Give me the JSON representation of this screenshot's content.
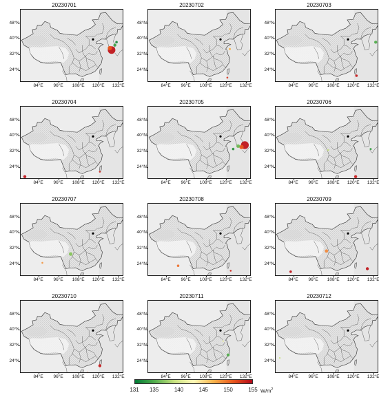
{
  "lat_labels": [
    "48°N",
    "40°N",
    "32°N",
    "24°N"
  ],
  "lon_labels": [
    "84°E",
    "96°E",
    "108°E",
    "120°E",
    "132°E"
  ],
  "map_extent": {
    "lon": [
      73,
      135
    ],
    "lat": [
      18,
      55
    ]
  },
  "panels": [
    {
      "date": "20230701",
      "hotspots": [
        {
          "lon": 127.5,
          "lat": 34.5,
          "r": 2.5,
          "value": 155,
          "color": "#c0161b"
        },
        {
          "lon": 126.5,
          "lat": 35.5,
          "r": 1.4,
          "value": 150,
          "color": "#e8591e"
        },
        {
          "lon": 129.5,
          "lat": 37.0,
          "r": 1.0,
          "value": 135,
          "color": "#3fa24a"
        },
        {
          "lon": 130.5,
          "lat": 38.5,
          "r": 0.8,
          "value": 133,
          "color": "#1e8a3c"
        }
      ]
    },
    {
      "date": "20230702",
      "hotspots": [
        {
          "lon": 122.0,
          "lat": 35.0,
          "r": 0.7,
          "value": 145,
          "color": "#f6b44d"
        },
        {
          "lon": 120.5,
          "lat": 20.5,
          "r": 0.6,
          "value": 152,
          "color": "#d93a26"
        }
      ]
    },
    {
      "date": "20230703",
      "hotspots": [
        {
          "lon": 133.0,
          "lat": 38.5,
          "r": 1.0,
          "value": 136,
          "color": "#52ad4d"
        },
        {
          "lon": 121.5,
          "lat": 21.5,
          "r": 0.8,
          "value": 154,
          "color": "#c81e1f"
        }
      ]
    },
    {
      "date": "20230704",
      "hotspots": [
        {
          "lon": 75.5,
          "lat": 19.5,
          "r": 1.0,
          "value": 155,
          "color": "#c0161b"
        },
        {
          "lon": 120.5,
          "lat": 22.0,
          "r": 0.6,
          "value": 153,
          "color": "#cf2a22"
        }
      ]
    },
    {
      "date": "20230705",
      "hotspots": [
        {
          "lon": 131.0,
          "lat": 35.5,
          "r": 2.6,
          "value": 155,
          "color": "#c0161b"
        },
        {
          "lon": 129.0,
          "lat": 34.5,
          "r": 1.4,
          "value": 150,
          "color": "#e8591e"
        },
        {
          "lon": 127.0,
          "lat": 35.0,
          "r": 1.2,
          "value": 137,
          "color": "#6db852"
        },
        {
          "lon": 124.0,
          "lat": 33.5,
          "r": 0.8,
          "value": 134,
          "color": "#2f9643"
        }
      ]
    },
    {
      "date": "20230706",
      "hotspots": [
        {
          "lon": 104.5,
          "lat": 33.0,
          "r": 0.6,
          "value": 140,
          "color": "#c6e07e"
        },
        {
          "lon": 130.0,
          "lat": 33.5,
          "r": 0.7,
          "value": 135,
          "color": "#3fa24a"
        },
        {
          "lon": 121.0,
          "lat": 19.5,
          "r": 1.0,
          "value": 154,
          "color": "#c81e1f"
        }
      ]
    },
    {
      "date": "20230707",
      "hotspots": [
        {
          "lon": 103.0,
          "lat": 29.5,
          "r": 1.2,
          "value": 138,
          "color": "#86c45a"
        },
        {
          "lon": 86.0,
          "lat": 25.0,
          "r": 0.6,
          "value": 147,
          "color": "#f29845"
        }
      ]
    },
    {
      "date": "20230708",
      "hotspots": [
        {
          "lon": 91.0,
          "lat": 23.5,
          "r": 0.8,
          "value": 149,
          "color": "#ed7635"
        },
        {
          "lon": 122.5,
          "lat": 21.0,
          "r": 0.6,
          "value": 153,
          "color": "#cf2a22"
        }
      ]
    },
    {
      "date": "20230709",
      "hotspots": [
        {
          "lon": 103.5,
          "lat": 31.0,
          "r": 1.1,
          "value": 148,
          "color": "#f08a3e"
        },
        {
          "lon": 82.0,
          "lat": 20.5,
          "r": 0.8,
          "value": 155,
          "color": "#c0161b"
        },
        {
          "lon": 128.0,
          "lat": 22.0,
          "r": 1.0,
          "value": 155,
          "color": "#c0161b"
        }
      ]
    },
    {
      "date": "20230710",
      "hotspots": [
        {
          "lon": 120.5,
          "lat": 22.0,
          "r": 1.0,
          "value": 154,
          "color": "#c81e1f"
        },
        {
          "lon": 113.0,
          "lat": 18.5,
          "r": 0.5,
          "value": 150,
          "color": "#e8591e"
        }
      ]
    },
    {
      "date": "20230711",
      "hotspots": [
        {
          "lon": 121.0,
          "lat": 27.5,
          "r": 1.0,
          "value": 136,
          "color": "#52ad4d"
        },
        {
          "lon": 118.0,
          "lat": 34.5,
          "r": 0.5,
          "value": 142,
          "color": "#e6e994"
        }
      ]
    },
    {
      "date": "20230712",
      "hotspots": [
        {
          "lon": 75.5,
          "lat": 26.0,
          "r": 0.5,
          "value": 140,
          "color": "#c6e07e"
        }
      ]
    }
  ],
  "colorbar": {
    "ticks": [
      "131",
      "135",
      "140",
      "145",
      "150",
      "155"
    ],
    "tick_values": [
      131,
      135,
      140,
      145,
      150,
      155
    ],
    "range": [
      131,
      155
    ],
    "colors": [
      "#007a35",
      "#52ad4d",
      "#c6e07e",
      "#fff9b8",
      "#f6b44d",
      "#e8591e",
      "#b3081a"
    ],
    "unit": "W/m",
    "unit_sup": "2"
  }
}
